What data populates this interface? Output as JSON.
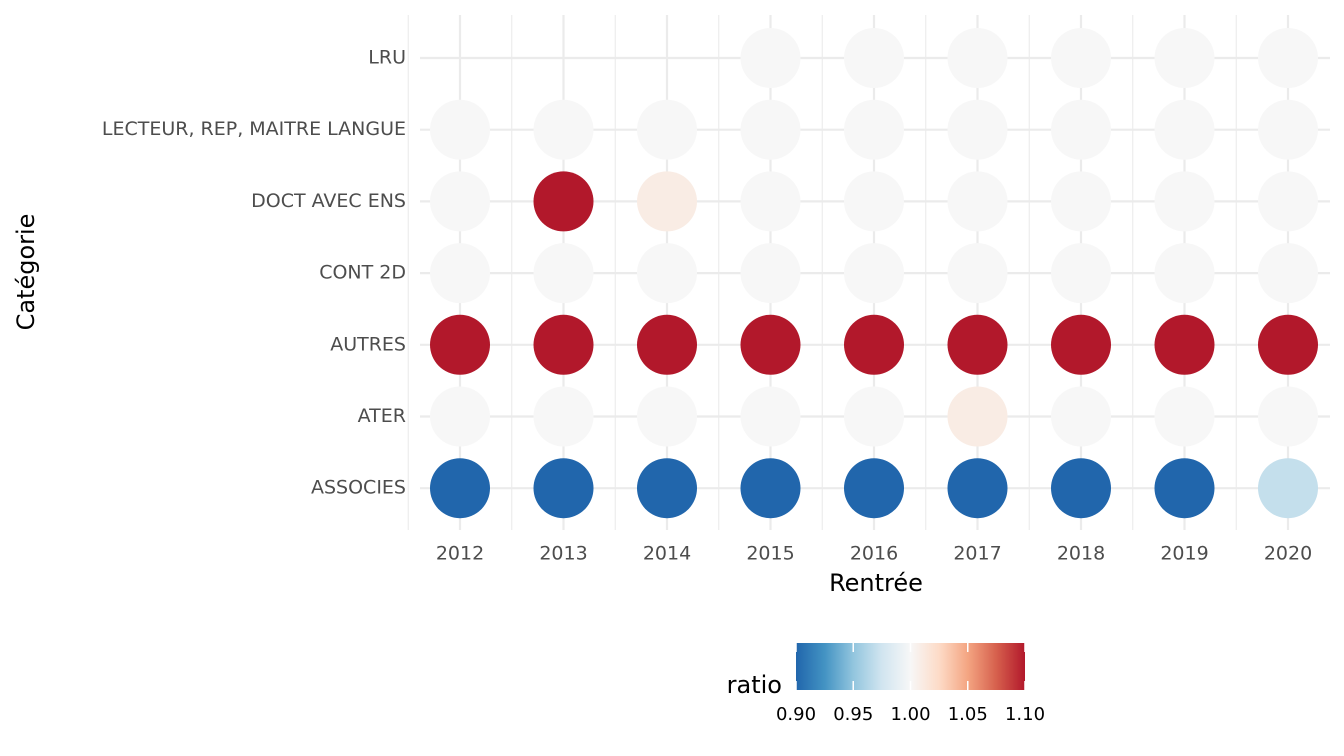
{
  "chart_data": {
    "type": "heatmap",
    "x_label": "Rentrée",
    "y_label": "Catégorie",
    "x": [
      "2012",
      "2013",
      "2014",
      "2015",
      "2016",
      "2017",
      "2018",
      "2019",
      "2020"
    ],
    "categories": [
      "LRU",
      "LECTEUR, REP, MAITRE LANGUE",
      "DOCT AVEC ENS",
      "CONT 2D",
      "AUTRES",
      "ATER",
      "ASSOCIES"
    ],
    "values": [
      [
        null,
        null,
        null,
        1.0,
        1.0,
        1.0,
        1.0,
        1.0,
        1.0
      ],
      [
        1.0,
        1.0,
        1.0,
        1.0,
        1.0,
        1.0,
        1.0,
        1.0,
        1.0
      ],
      [
        1.0,
        1.1,
        1.01,
        1.0,
        1.0,
        1.0,
        1.0,
        1.0,
        1.0
      ],
      [
        1.0,
        1.0,
        1.0,
        1.0,
        1.0,
        1.0,
        1.0,
        1.0,
        1.0
      ],
      [
        1.1,
        1.1,
        1.1,
        1.1,
        1.1,
        1.1,
        1.1,
        1.1,
        1.1
      ],
      [
        1.0,
        1.0,
        1.0,
        1.0,
        1.0,
        1.01,
        1.0,
        1.0,
        1.0
      ],
      [
        0.9,
        0.9,
        0.9,
        0.9,
        0.9,
        0.9,
        0.9,
        0.9,
        0.97
      ]
    ],
    "legend_title": "ratio",
    "colorscale": [
      "#2166ac",
      "#4393c3",
      "#92c5de",
      "#d1e5f0",
      "#f7f7f7",
      "#fddbc7",
      "#f4a582",
      "#d6604d",
      "#b2182b"
    ],
    "clim": [
      0.9,
      1.1
    ],
    "cticks": [
      {
        "value": 0.9,
        "label": "0.90"
      },
      {
        "value": 0.95,
        "label": "0.95"
      },
      {
        "value": 1.0,
        "label": "1.00"
      },
      {
        "value": 1.05,
        "label": "1.05"
      },
      {
        "value": 1.1,
        "label": "1.10"
      }
    ],
    "grid": true
  }
}
